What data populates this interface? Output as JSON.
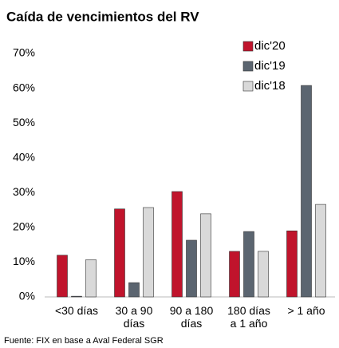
{
  "chart_data": {
    "type": "bar",
    "title": "Caída de vencimientos del RV",
    "categories": [
      "<30 días",
      "30 a 90\ndías",
      "90 a 180\ndías",
      "180 días\na 1 año",
      "> 1 año"
    ],
    "series": [
      {
        "name": "dic'20",
        "color": "#c0142c",
        "values": [
          12.0,
          25.3,
          30.3,
          13.1,
          19.0
        ]
      },
      {
        "name": "dic'19",
        "color": "#5b6570",
        "values": [
          0.2,
          4.1,
          16.3,
          18.8,
          60.8
        ]
      },
      {
        "name": "dic'18",
        "color": "#d9d9d9",
        "values": [
          10.7,
          25.7,
          23.9,
          13.1,
          26.6
        ]
      }
    ],
    "ylim": [
      0,
      70
    ],
    "yticks": [
      {
        "value": 0,
        "label": "0%"
      },
      {
        "value": 10,
        "label": "10%"
      },
      {
        "value": 20,
        "label": "20%"
      },
      {
        "value": 30,
        "label": "30%"
      },
      {
        "value": 40,
        "label": "40%"
      },
      {
        "value": 50,
        "label": "50%"
      },
      {
        "value": 60,
        "label": "60%"
      },
      {
        "value": 70,
        "label": "70%"
      }
    ],
    "legend": "upper right",
    "source": "Fuente: FIX en base a Aval Federal SGR"
  }
}
